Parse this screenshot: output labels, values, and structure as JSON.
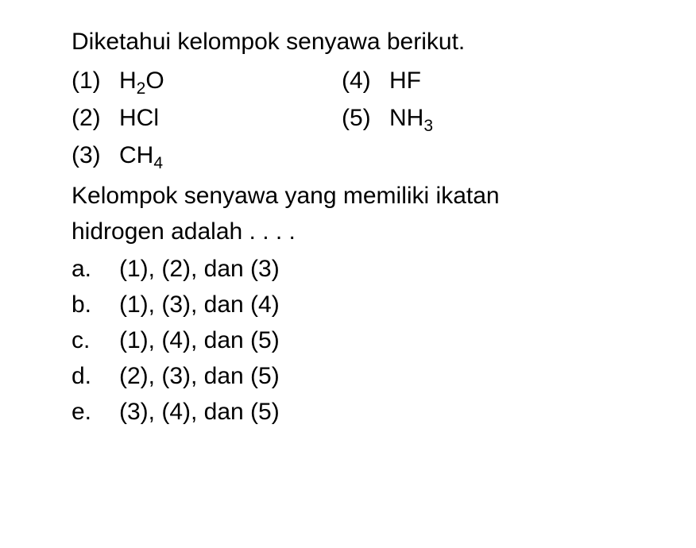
{
  "intro": "Diketahui kelompok senyawa berikut.",
  "compounds": {
    "c1": {
      "num": "(1)",
      "formula_base": "H",
      "formula_sub": "2",
      "formula_suffix": "O"
    },
    "c2": {
      "num": "(2)",
      "formula_base": "HCl",
      "formula_sub": "",
      "formula_suffix": ""
    },
    "c3": {
      "num": "(3)",
      "formula_base": "CH",
      "formula_sub": "4",
      "formula_suffix": ""
    },
    "c4": {
      "num": "(4)",
      "formula_base": "HF",
      "formula_sub": "",
      "formula_suffix": ""
    },
    "c5": {
      "num": "(5)",
      "formula_base": "NH",
      "formula_sub": "3",
      "formula_suffix": ""
    }
  },
  "prompt_line1": "Kelompok senyawa yang memiliki ikatan",
  "prompt_line2": "hidrogen adalah . . . .",
  "options": {
    "a": {
      "letter": "a.",
      "text": "(1), (2), dan (3)"
    },
    "b": {
      "letter": "b.",
      "text": "(1), (3), dan (4)"
    },
    "c": {
      "letter": "c.",
      "text": "(1), (4), dan (5)"
    },
    "d": {
      "letter": "d.",
      "text": "(2), (3), dan (5)"
    },
    "e": {
      "letter": "e.",
      "text": "(3), (4), dan (5)"
    }
  },
  "style": {
    "font_size": 30,
    "background_color": "#ffffff",
    "text_color": "#000000",
    "font_family": "Arial"
  }
}
